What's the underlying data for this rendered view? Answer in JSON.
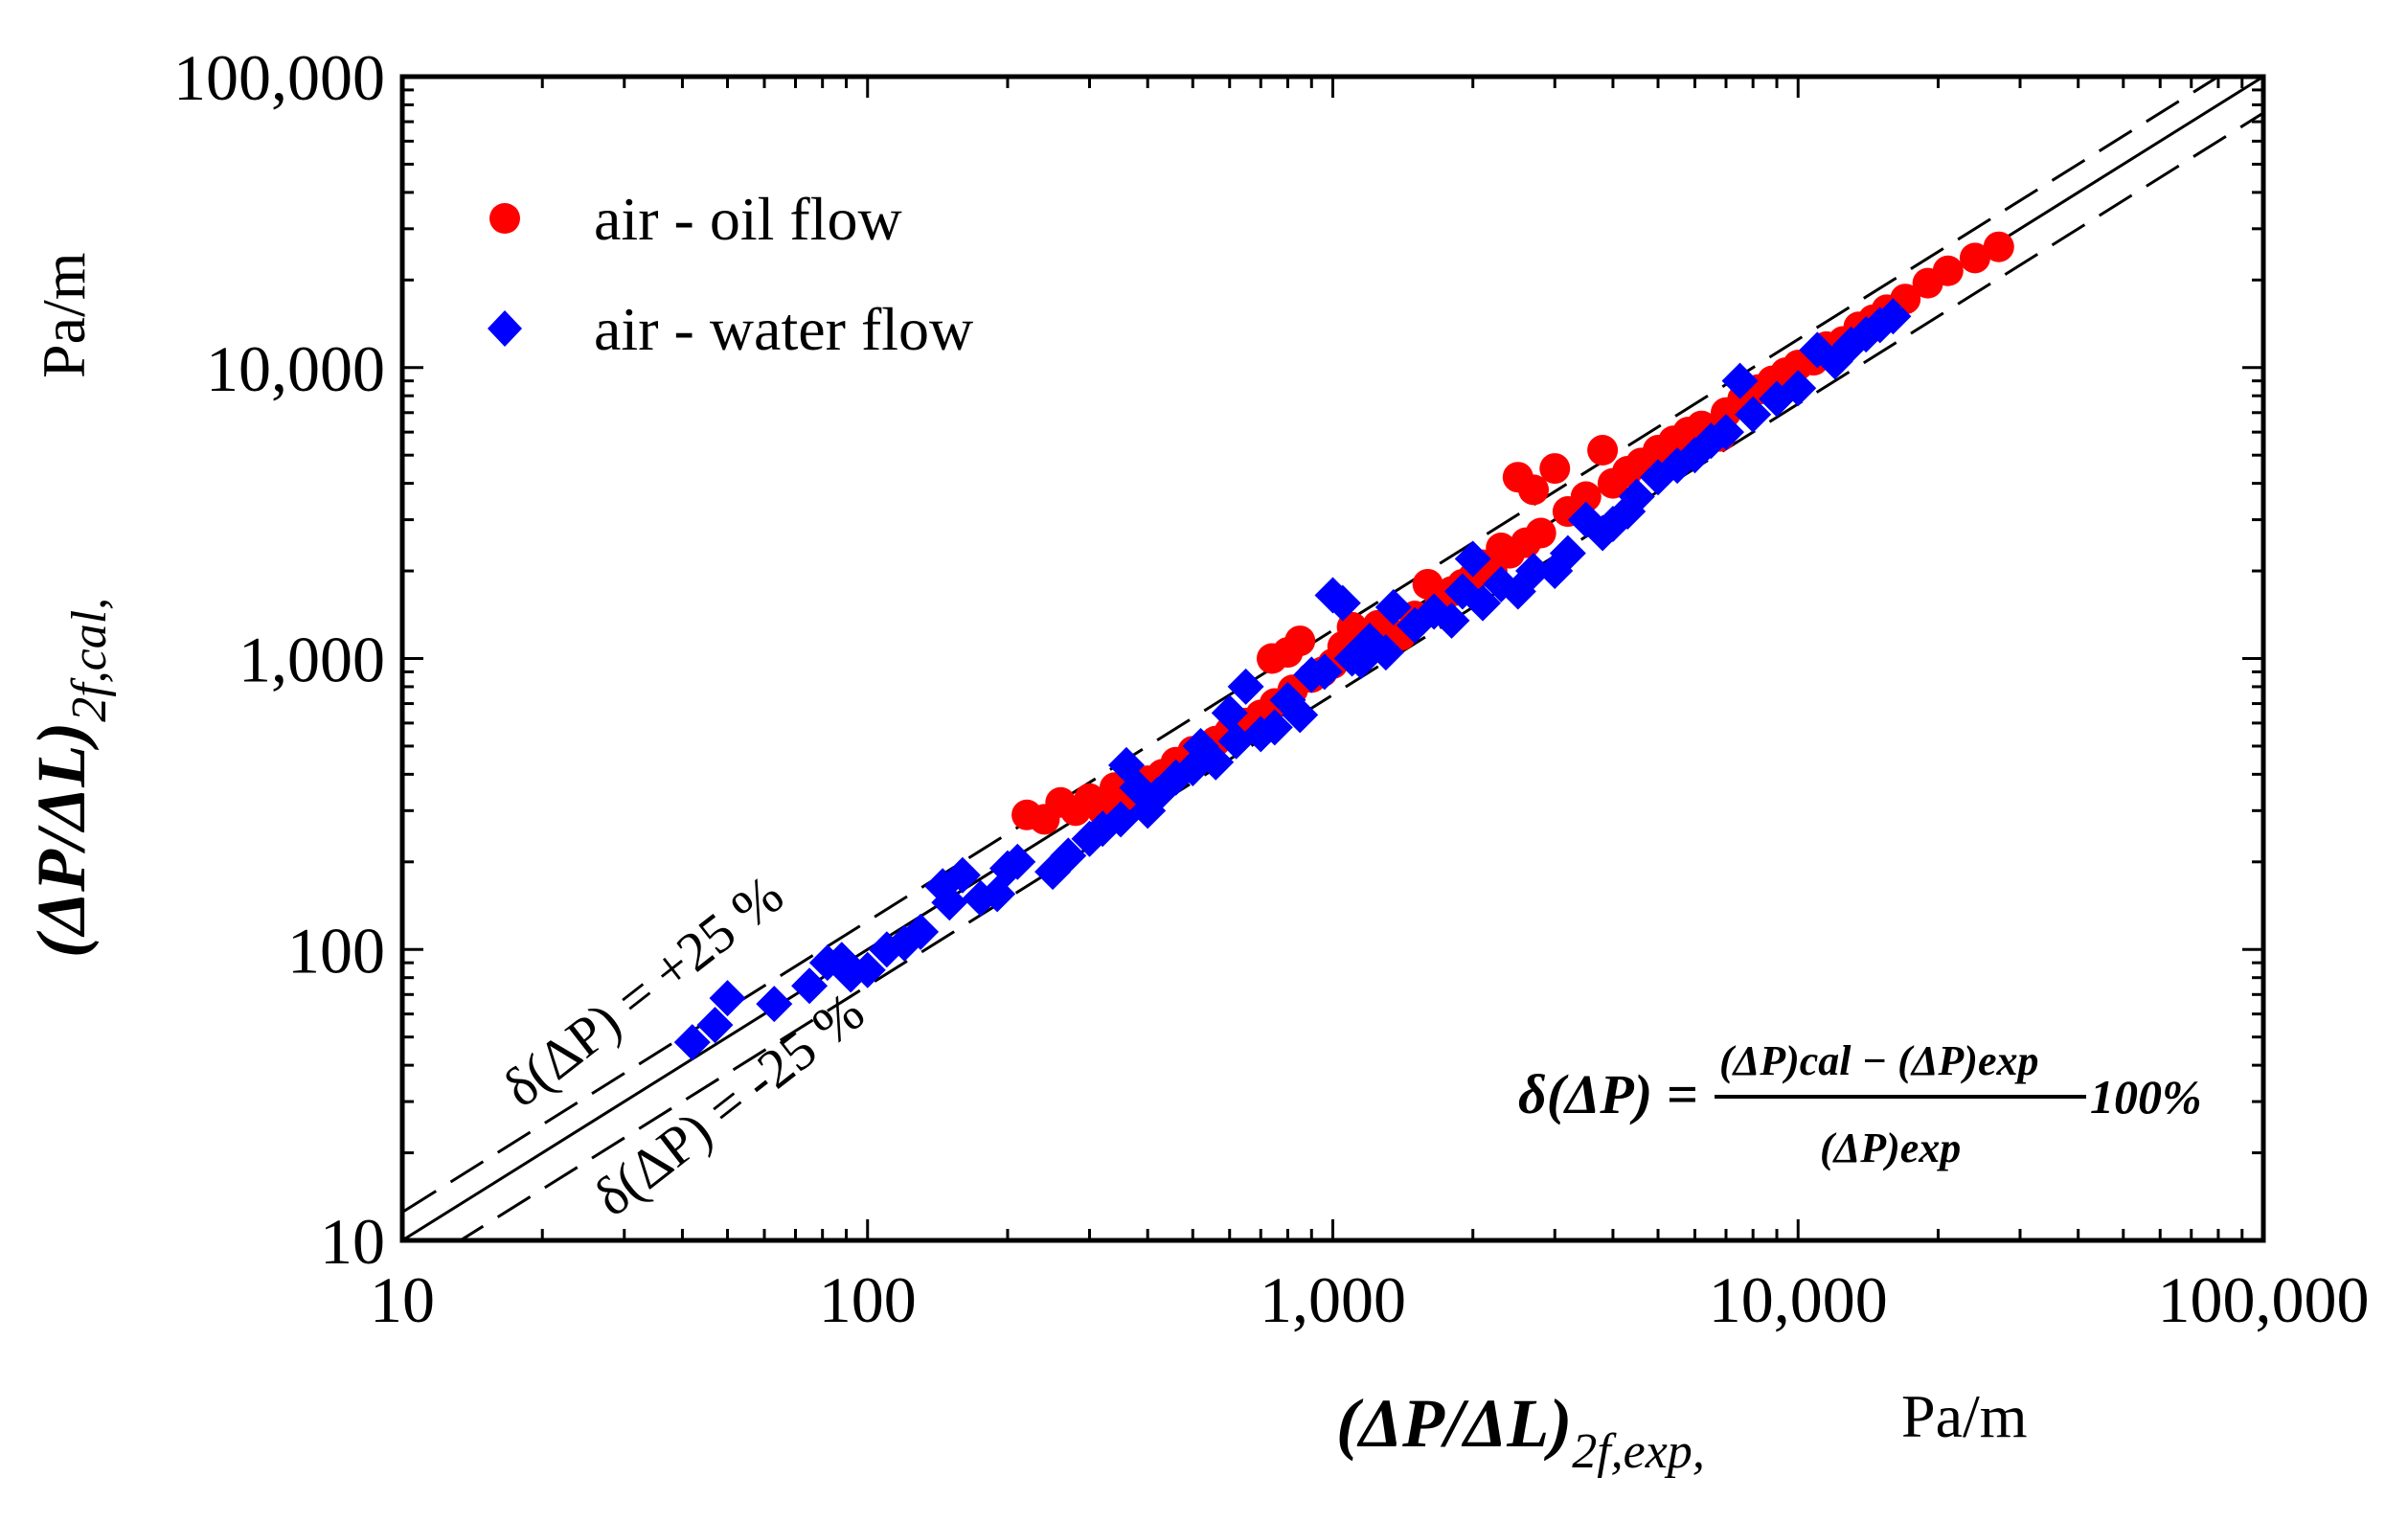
{
  "chart_data": {
    "type": "scatter",
    "x_scale": "log",
    "y_scale": "log",
    "xlim": [
      10,
      100000
    ],
    "ylim": [
      10,
      100000
    ],
    "x_ticks": [
      10,
      100,
      1000,
      10000,
      100000
    ],
    "x_tick_labels": [
      "10",
      "100",
      "1,000",
      "10,000",
      "100,000"
    ],
    "y_ticks": [
      10,
      100,
      1000,
      10000,
      100000
    ],
    "y_tick_labels": [
      "10",
      "100",
      "1,000",
      "10,000",
      "100,000"
    ],
    "xlabel": {
      "main": "(ΔP/ΔL)",
      "sub": "2f,exp",
      "suffix": ",",
      "unit": "Pa/m"
    },
    "ylabel": {
      "main": "(ΔP/ΔL)",
      "sub": "2f,cal",
      "suffix": ",",
      "unit": "Pa/m"
    },
    "legend_position": "top-left",
    "series": [
      {
        "name": "air - oil flow",
        "marker": "circle",
        "color": "#ff0000",
        "points": [
          [
            220,
            290
          ],
          [
            240,
            280
          ],
          [
            260,
            320
          ],
          [
            280,
            300
          ],
          [
            300,
            330
          ],
          [
            320,
            300
          ],
          [
            340,
            360
          ],
          [
            360,
            330
          ],
          [
            400,
            380
          ],
          [
            430,
            400
          ],
          [
            460,
            440
          ],
          [
            500,
            480
          ],
          [
            520,
            460
          ],
          [
            560,
            520
          ],
          [
            600,
            560
          ],
          [
            650,
            600
          ],
          [
            700,
            640
          ],
          [
            750,
            700
          ],
          [
            740,
            1000
          ],
          [
            800,
            1050
          ],
          [
            820,
            780
          ],
          [
            850,
            1150
          ],
          [
            900,
            860
          ],
          [
            950,
            900
          ],
          [
            1000,
            960
          ],
          [
            1050,
            1100
          ],
          [
            1100,
            1280
          ],
          [
            1150,
            1200
          ],
          [
            1250,
            1300
          ],
          [
            1300,
            1250
          ],
          [
            1400,
            1200
          ],
          [
            1500,
            1400
          ],
          [
            1600,
            1800
          ],
          [
            1700,
            1600
          ],
          [
            1800,
            1700
          ],
          [
            1900,
            1800
          ],
          [
            2000,
            1900
          ],
          [
            2100,
            2100
          ],
          [
            2200,
            2000
          ],
          [
            2300,
            2400
          ],
          [
            2400,
            2300
          ],
          [
            2500,
            4200
          ],
          [
            2600,
            2500
          ],
          [
            2700,
            3800
          ],
          [
            2800,
            2700
          ],
          [
            3000,
            4500
          ],
          [
            3200,
            3200
          ],
          [
            3500,
            3600
          ],
          [
            3800,
            5200
          ],
          [
            4000,
            4000
          ],
          [
            4300,
            4400
          ],
          [
            4600,
            4700
          ],
          [
            5000,
            5200
          ],
          [
            5400,
            5600
          ],
          [
            5800,
            6000
          ],
          [
            6200,
            6300
          ],
          [
            6800,
            5800
          ],
          [
            7000,
            7000
          ],
          [
            7600,
            7800
          ],
          [
            8200,
            8400
          ],
          [
            8800,
            9000
          ],
          [
            9400,
            9600
          ],
          [
            10000,
            10200
          ],
          [
            10800,
            10600
          ],
          [
            11500,
            11800
          ],
          [
            12500,
            12300
          ],
          [
            13500,
            13800
          ],
          [
            14500,
            14600
          ],
          [
            15500,
            15800
          ],
          [
            17000,
            17200
          ],
          [
            19000,
            19500
          ],
          [
            21000,
            21500
          ],
          [
            24000,
            23800
          ],
          [
            27000,
            26000
          ]
        ]
      },
      {
        "name": "air - water flow",
        "marker": "diamond",
        "color": "#0000ff",
        "points": [
          [
            42,
            48
          ],
          [
            47,
            55
          ],
          [
            50,
            68
          ],
          [
            63,
            65
          ],
          [
            75,
            75
          ],
          [
            82,
            90
          ],
          [
            88,
            92
          ],
          [
            92,
            82
          ],
          [
            100,
            85
          ],
          [
            110,
            100
          ],
          [
            120,
            105
          ],
          [
            130,
            115
          ],
          [
            145,
            165
          ],
          [
            150,
            145
          ],
          [
            160,
            180
          ],
          [
            175,
            150
          ],
          [
            190,
            155
          ],
          [
            200,
            190
          ],
          [
            210,
            200
          ],
          [
            250,
            185
          ],
          [
            270,
            210
          ],
          [
            300,
            240
          ],
          [
            320,
            260
          ],
          [
            350,
            280
          ],
          [
            360,
            430
          ],
          [
            380,
            360
          ],
          [
            400,
            300
          ],
          [
            420,
            340
          ],
          [
            460,
            390
          ],
          [
            500,
            420
          ],
          [
            520,
            500
          ],
          [
            560,
            440
          ],
          [
            600,
            650
          ],
          [
            620,
            520
          ],
          [
            650,
            800
          ],
          [
            700,
            550
          ],
          [
            750,
            580
          ],
          [
            800,
            720
          ],
          [
            850,
            640
          ],
          [
            900,
            880
          ],
          [
            960,
            900
          ],
          [
            1000,
            1650
          ],
          [
            1050,
            1550
          ],
          [
            1100,
            1000
          ],
          [
            1150,
            980
          ],
          [
            1200,
            1150
          ],
          [
            1300,
            1050
          ],
          [
            1350,
            1500
          ],
          [
            1500,
            1300
          ],
          [
            1650,
            1450
          ],
          [
            1800,
            1350
          ],
          [
            1900,
            1700
          ],
          [
            2000,
            2200
          ],
          [
            2100,
            1550
          ],
          [
            2300,
            1800
          ],
          [
            2500,
            1700
          ],
          [
            2700,
            2000
          ],
          [
            3000,
            2000
          ],
          [
            3200,
            2300
          ],
          [
            3500,
            3000
          ],
          [
            3800,
            2700
          ],
          [
            4000,
            2900
          ],
          [
            4300,
            3200
          ],
          [
            4500,
            3600
          ],
          [
            5000,
            4200
          ],
          [
            5500,
            4600
          ],
          [
            6000,
            5000
          ],
          [
            6500,
            5600
          ],
          [
            7000,
            6000
          ],
          [
            7500,
            9000
          ],
          [
            8000,
            6900
          ],
          [
            9000,
            7800
          ],
          [
            10000,
            8500
          ],
          [
            11000,
            11500
          ],
          [
            12000,
            10500
          ],
          [
            13000,
            12000
          ],
          [
            14000,
            13000
          ],
          [
            15000,
            14000
          ],
          [
            16000,
            15000
          ]
        ]
      }
    ],
    "reference_lines": [
      {
        "name": "perfect-agreement",
        "factor": 1.0,
        "style": "solid"
      },
      {
        "name": "plus-25",
        "factor": 1.25,
        "style": "dashed",
        "label": "δ(ΔP) = +25 %"
      },
      {
        "name": "minus-25",
        "factor": 0.75,
        "style": "dashed",
        "label": "δ(ΔP) = -25 %"
      }
    ],
    "formula": {
      "lhs": "δ(ΔP) =",
      "numerator": "(ΔP)cal − (ΔP)exp",
      "denominator": "(ΔP)exp",
      "suffix": "100%"
    }
  }
}
